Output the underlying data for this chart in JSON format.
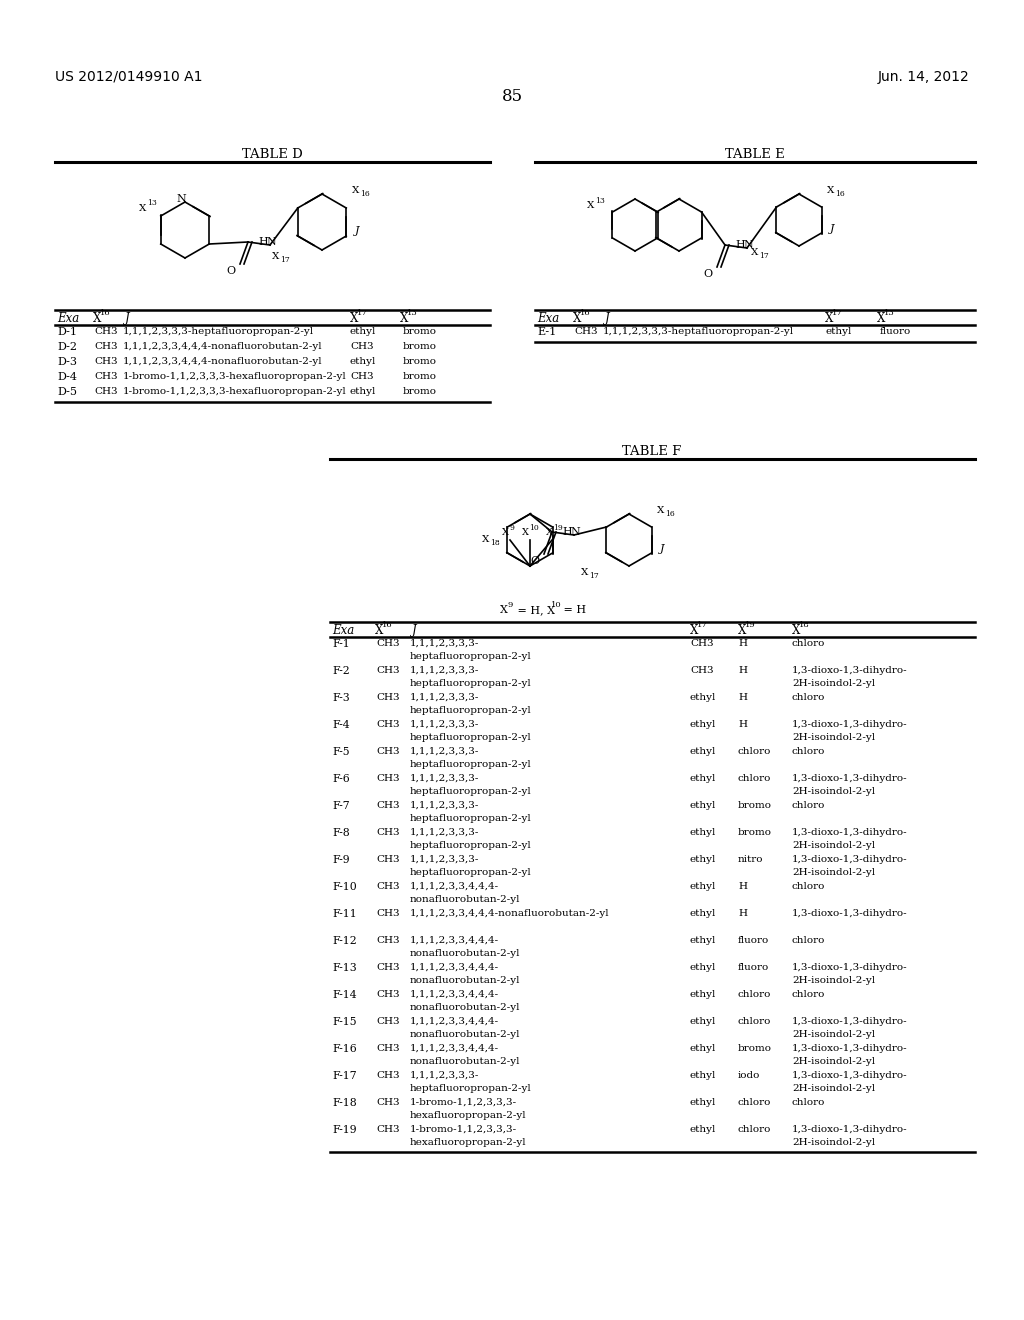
{
  "header_left": "US 2012/0149910 A1",
  "header_right": "Jun. 14, 2012",
  "page_number": "85",
  "background_color": "#ffffff",
  "table_d": {
    "title": "TABLE D",
    "rows": [
      [
        "D-1",
        "CH3",
        "1,1,1,2,3,3,3-heptafluoropropan-2-yl",
        "ethyl",
        "bromo"
      ],
      [
        "D-2",
        "CH3",
        "1,1,1,2,3,3,4,4,4-nonafluorobutan-2-yl",
        "CH3",
        "bromo"
      ],
      [
        "D-3",
        "CH3",
        "1,1,1,2,3,3,4,4,4-nonafluorobutan-2-yl",
        "ethyl",
        "bromo"
      ],
      [
        "D-4",
        "CH3",
        "1-bromo-1,1,2,3,3,3-hexafluoropropan-2-yl",
        "CH3",
        "bromo"
      ],
      [
        "D-5",
        "CH3",
        "1-bromo-1,1,2,3,3,3-hexafluoropropan-2-yl",
        "ethyl",
        "bromo"
      ]
    ]
  },
  "table_e": {
    "title": "TABLE E",
    "rows": [
      [
        "E-1",
        "CH3",
        "1,1,1,2,3,3,3-heptafluoropropan-2-yl",
        "ethyl",
        "fluoro"
      ]
    ]
  },
  "table_f": {
    "title": "TABLE F",
    "rows": [
      [
        "F-1",
        "CH3",
        "1,1,1,2,3,3,3-",
        "heptafluoropropan-2-yl",
        "CH3",
        "H",
        "chloro",
        ""
      ],
      [
        "F-2",
        "CH3",
        "1,1,1,2,3,3,3-",
        "heptafluoropropan-2-yl",
        "CH3",
        "H",
        "1,3-dioxo-1,3-dihydro-",
        "2H-isoindol-2-yl"
      ],
      [
        "F-3",
        "CH3",
        "1,1,1,2,3,3,3-",
        "heptafluoropropan-2-yl",
        "ethyl",
        "H",
        "chloro",
        ""
      ],
      [
        "F-4",
        "CH3",
        "1,1,1,2,3,3,3-",
        "heptafluoropropan-2-yl",
        "ethyl",
        "H",
        "1,3-dioxo-1,3-dihydro-",
        "2H-isoindol-2-yl"
      ],
      [
        "F-5",
        "CH3",
        "1,1,1,2,3,3,3-",
        "heptafluoropropan-2-yl",
        "ethyl",
        "chloro",
        "chloro",
        ""
      ],
      [
        "F-6",
        "CH3",
        "1,1,1,2,3,3,3-",
        "heptafluoropropan-2-yl",
        "ethyl",
        "chloro",
        "1,3-dioxo-1,3-dihydro-",
        "2H-isoindol-2-yl"
      ],
      [
        "F-7",
        "CH3",
        "1,1,1,2,3,3,3-",
        "heptafluoropropan-2-yl",
        "ethyl",
        "bromo",
        "chloro",
        ""
      ],
      [
        "F-8",
        "CH3",
        "1,1,1,2,3,3,3-",
        "heptafluoropropan-2-yl",
        "ethyl",
        "bromo",
        "1,3-dioxo-1,3-dihydro-",
        "2H-isoindol-2-yl"
      ],
      [
        "F-9",
        "CH3",
        "1,1,1,2,3,3,3-",
        "heptafluoropropan-2-yl",
        "ethyl",
        "nitro",
        "1,3-dioxo-1,3-dihydro-",
        "2H-isoindol-2-yl"
      ],
      [
        "F-10",
        "CH3",
        "1,1,1,2,3,3,4,4,4-",
        "nonafluorobutan-2-yl",
        "ethyl",
        "H",
        "chloro",
        ""
      ],
      [
        "F-11",
        "CH3",
        "1,1,1,2,3,3,4,4,4-nonafluorobutan-2-yl",
        "",
        "ethyl",
        "H",
        "1,3-dioxo-1,3-dihydro-",
        ""
      ],
      [
        "F-12",
        "CH3",
        "1,1,1,2,3,3,4,4,4-",
        "nonafluorobutan-2-yl",
        "ethyl",
        "fluoro",
        "chloro",
        ""
      ],
      [
        "F-13",
        "CH3",
        "1,1,1,2,3,3,4,4,4-",
        "nonafluorobutan-2-yl",
        "ethyl",
        "fluoro",
        "1,3-dioxo-1,3-dihydro-",
        "2H-isoindol-2-yl"
      ],
      [
        "F-14",
        "CH3",
        "1,1,1,2,3,3,4,4,4-",
        "nonafluorobutan-2-yl",
        "ethyl",
        "chloro",
        "chloro",
        ""
      ],
      [
        "F-15",
        "CH3",
        "1,1,1,2,3,3,4,4,4-",
        "nonafluorobutan-2-yl",
        "ethyl",
        "chloro",
        "1,3-dioxo-1,3-dihydro-",
        "2H-isoindol-2-yl"
      ],
      [
        "F-16",
        "CH3",
        "1,1,1,2,3,3,4,4,4-",
        "nonafluorobutan-2-yl",
        "ethyl",
        "bromo",
        "1,3-dioxo-1,3-dihydro-",
        "2H-isoindol-2-yl"
      ],
      [
        "F-17",
        "CH3",
        "1,1,1,2,3,3,3-",
        "heptafluoropropan-2-yl",
        "ethyl",
        "iodo",
        "1,3-dioxo-1,3-dihydro-",
        "2H-isoindol-2-yl"
      ],
      [
        "F-18",
        "CH3",
        "1-bromo-1,1,2,3,3,3-",
        "hexafluoropropan-2-yl",
        "ethyl",
        "chloro",
        "chloro",
        ""
      ],
      [
        "F-19",
        "CH3",
        "1-bromo-1,1,2,3,3,3-",
        "hexafluoropropan-2-yl",
        "ethyl",
        "chloro",
        "1,3-dioxo-1,3-dihydro-",
        "2H-isoindol-2-yl"
      ]
    ]
  }
}
